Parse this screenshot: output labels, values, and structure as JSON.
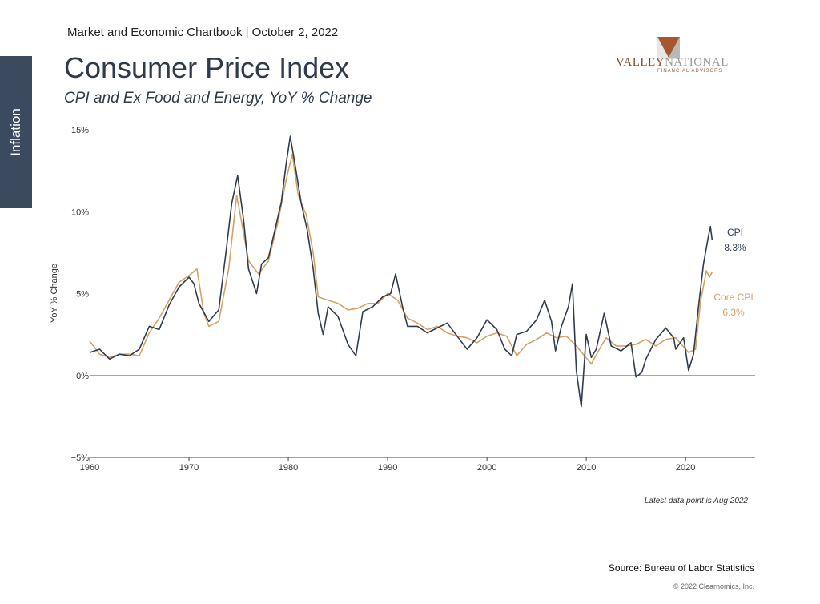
{
  "sidebar": {
    "tab_label": "Inflation"
  },
  "header": {
    "kicker": "Market and Economic Chartbook | October 2, 2022",
    "title": "Consumer Price Index",
    "subtitle": "CPI and Ex Food and Energy, YoY % Change"
  },
  "logo": {
    "name_part1": "VALLEY",
    "name_part2": "NATIONAL",
    "tagline": "FINANCIAL ADVISORS"
  },
  "footer": {
    "latest_note": "Latest data point is Aug 2022",
    "source": "Source: Bureau of Labor Statistics",
    "copyright": "© 2022 Clearnomics, Inc."
  },
  "colors": {
    "cpi": "#2f3d4f",
    "core_cpi": "#d6a163",
    "zero_line": "#888888",
    "sidebar": "#3b4a5e"
  },
  "chart_data": {
    "type": "line",
    "ylabel": "YoY % Change",
    "xlim": [
      1960,
      2027
    ],
    "ylim": [
      -5,
      15
    ],
    "y_ticks": [
      15,
      10,
      5,
      0,
      -5
    ],
    "y_tick_labels": [
      "15%",
      "10%",
      "5%",
      "0%",
      "−5%"
    ],
    "x_ticks": [
      1960,
      1970,
      1980,
      1990,
      2000,
      2010,
      2020
    ],
    "x_tick_labels": [
      "1960",
      "1970",
      "1980",
      "1990",
      "2000",
      "2010",
      "2020"
    ],
    "series": [
      {
        "name": "CPI",
        "end_label": "8.3%",
        "points": [
          [
            1960,
            1.4
          ],
          [
            1961,
            1.6
          ],
          [
            1962,
            1.0
          ],
          [
            1963,
            1.3
          ],
          [
            1964,
            1.2
          ],
          [
            1965,
            1.6
          ],
          [
            1966,
            3.0
          ],
          [
            1967,
            2.8
          ],
          [
            1968,
            4.3
          ],
          [
            1969,
            5.4
          ],
          [
            1970,
            6.0
          ],
          [
            1970.5,
            5.6
          ],
          [
            1971,
            4.4
          ],
          [
            1972,
            3.3
          ],
          [
            1973,
            4.0
          ],
          [
            1973.7,
            7.4
          ],
          [
            1974.3,
            10.5
          ],
          [
            1974.9,
            12.2
          ],
          [
            1975.5,
            9.5
          ],
          [
            1976,
            6.5
          ],
          [
            1976.8,
            5.0
          ],
          [
            1977.3,
            6.8
          ],
          [
            1978,
            7.2
          ],
          [
            1978.7,
            9.0
          ],
          [
            1979.3,
            10.6
          ],
          [
            1979.8,
            13.0
          ],
          [
            1980.2,
            14.6
          ],
          [
            1980.7,
            12.8
          ],
          [
            1981.3,
            10.5
          ],
          [
            1981.9,
            8.9
          ],
          [
            1982.5,
            6.5
          ],
          [
            1983,
            3.8
          ],
          [
            1983.5,
            2.5
          ],
          [
            1984,
            4.2
          ],
          [
            1985,
            3.6
          ],
          [
            1986,
            1.9
          ],
          [
            1986.8,
            1.2
          ],
          [
            1987.5,
            3.9
          ],
          [
            1988.5,
            4.2
          ],
          [
            1989.5,
            4.8
          ],
          [
            1990.3,
            5.0
          ],
          [
            1990.8,
            6.2
          ],
          [
            1991.5,
            4.2
          ],
          [
            1992,
            3.0
          ],
          [
            1993,
            3.0
          ],
          [
            1994,
            2.6
          ],
          [
            1995,
            2.9
          ],
          [
            1996,
            3.2
          ],
          [
            1997,
            2.4
          ],
          [
            1998,
            1.6
          ],
          [
            1999,
            2.3
          ],
          [
            2000,
            3.4
          ],
          [
            2001,
            2.8
          ],
          [
            2001.8,
            1.6
          ],
          [
            2002.5,
            1.2
          ],
          [
            2003,
            2.5
          ],
          [
            2004,
            2.7
          ],
          [
            2005,
            3.4
          ],
          [
            2005.8,
            4.6
          ],
          [
            2006.5,
            3.3
          ],
          [
            2006.9,
            1.5
          ],
          [
            2007.5,
            3.0
          ],
          [
            2008.2,
            4.2
          ],
          [
            2008.6,
            5.6
          ],
          [
            2009,
            0.3
          ],
          [
            2009.5,
            -1.9
          ],
          [
            2010,
            2.5
          ],
          [
            2010.5,
            1.1
          ],
          [
            2011,
            1.6
          ],
          [
            2011.8,
            3.8
          ],
          [
            2012.5,
            1.8
          ],
          [
            2013.5,
            1.5
          ],
          [
            2014.5,
            2.0
          ],
          [
            2015,
            -0.1
          ],
          [
            2015.6,
            0.2
          ],
          [
            2016,
            1.0
          ],
          [
            2017,
            2.2
          ],
          [
            2018,
            2.9
          ],
          [
            2018.8,
            2.3
          ],
          [
            2019,
            1.6
          ],
          [
            2019.8,
            2.3
          ],
          [
            2020.3,
            0.3
          ],
          [
            2020.8,
            1.3
          ],
          [
            2021.3,
            4.2
          ],
          [
            2021.8,
            6.8
          ],
          [
            2022.3,
            8.5
          ],
          [
            2022.5,
            9.1
          ],
          [
            2022.67,
            8.3
          ]
        ]
      },
      {
        "name": "Core CPI",
        "end_label": "6.3%",
        "points": [
          [
            1960,
            2.1
          ],
          [
            1961,
            1.3
          ],
          [
            1962,
            1.1
          ],
          [
            1963,
            1.3
          ],
          [
            1964,
            1.3
          ],
          [
            1965,
            1.2
          ],
          [
            1966,
            2.6
          ],
          [
            1967,
            3.5
          ],
          [
            1968,
            4.6
          ],
          [
            1969,
            5.7
          ],
          [
            1970,
            6.1
          ],
          [
            1970.8,
            6.5
          ],
          [
            1971.5,
            3.8
          ],
          [
            1972,
            3.0
          ],
          [
            1973,
            3.3
          ],
          [
            1974,
            6.5
          ],
          [
            1974.8,
            11.0
          ],
          [
            1975.5,
            8.7
          ],
          [
            1976,
            7.0
          ],
          [
            1977,
            6.2
          ],
          [
            1978,
            7.0
          ],
          [
            1979,
            9.5
          ],
          [
            1979.8,
            12.0
          ],
          [
            1980.4,
            13.5
          ],
          [
            1981,
            11.0
          ],
          [
            1981.8,
            9.8
          ],
          [
            1982.5,
            7.5
          ],
          [
            1983,
            4.8
          ],
          [
            1984,
            4.6
          ],
          [
            1985,
            4.4
          ],
          [
            1986,
            4.0
          ],
          [
            1987,
            4.1
          ],
          [
            1988,
            4.4
          ],
          [
            1989,
            4.4
          ],
          [
            1990,
            5.0
          ],
          [
            1991,
            4.6
          ],
          [
            1992,
            3.5
          ],
          [
            1993,
            3.2
          ],
          [
            1994,
            2.8
          ],
          [
            1995,
            3.0
          ],
          [
            1996,
            2.6
          ],
          [
            1997,
            2.4
          ],
          [
            1998,
            2.3
          ],
          [
            1999,
            2.0
          ],
          [
            2000,
            2.4
          ],
          [
            2001,
            2.6
          ],
          [
            2002,
            2.4
          ],
          [
            2003,
            1.2
          ],
          [
            2004,
            1.9
          ],
          [
            2005,
            2.2
          ],
          [
            2006,
            2.6
          ],
          [
            2007,
            2.3
          ],
          [
            2008,
            2.4
          ],
          [
            2009,
            1.8
          ],
          [
            2010.5,
            0.7
          ],
          [
            2011.5,
            1.8
          ],
          [
            2012,
            2.3
          ],
          [
            2013,
            1.8
          ],
          [
            2014,
            1.8
          ],
          [
            2015,
            1.9
          ],
          [
            2016,
            2.2
          ],
          [
            2017,
            1.8
          ],
          [
            2018,
            2.2
          ],
          [
            2019,
            2.3
          ],
          [
            2020.3,
            1.4
          ],
          [
            2021,
            1.6
          ],
          [
            2021.5,
            4.5
          ],
          [
            2022.1,
            6.4
          ],
          [
            2022.4,
            6.0
          ],
          [
            2022.67,
            6.3
          ]
        ]
      }
    ]
  }
}
